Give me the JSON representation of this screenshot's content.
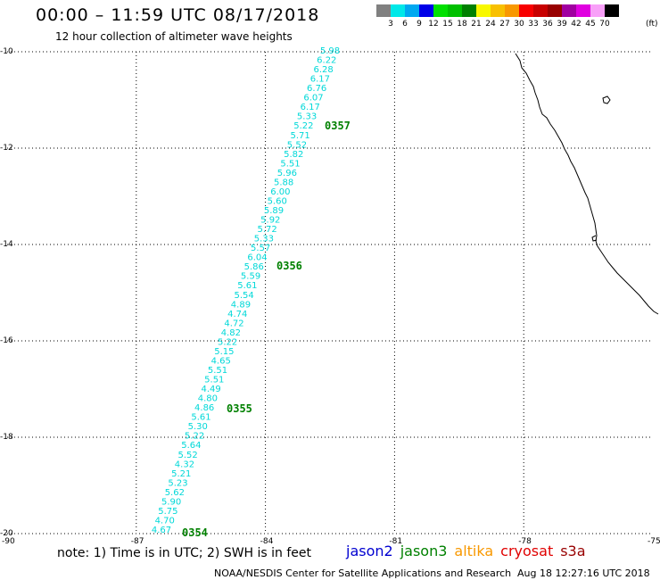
{
  "header": {
    "title": "00:00 – 11:59 UTC 08/17/2018",
    "subtitle": "12 hour collection of altimeter wave heights"
  },
  "legend": {
    "colors": [
      "#808080",
      "#00e8e8",
      "#00a8f0",
      "#0000e8",
      "#00e000",
      "#00c000",
      "#008000",
      "#f8f800",
      "#f8c000",
      "#f89800",
      "#f80000",
      "#c80000",
      "#980000",
      "#a000a0",
      "#e000e0",
      "#f8a0f8",
      "#000000"
    ],
    "labels": [
      "3",
      "6",
      "9",
      "12",
      "15",
      "18",
      "21",
      "24",
      "27",
      "30",
      "33",
      "36",
      "39",
      "42",
      "45",
      "70"
    ],
    "units": "(ft)"
  },
  "map": {
    "lon_range": [
      -90,
      -75
    ],
    "lat_range": [
      -20,
      -10
    ],
    "lat_labels": [
      "-10",
      "-12",
      "-14",
      "-16",
      "-18",
      "-20"
    ],
    "lon_labels": [
      "-87",
      "-84",
      "-81",
      "-78",
      "-75"
    ],
    "lon_left_label": "-90",
    "wave_color": "#00d8d8",
    "time_color": "#008000",
    "wave_heights": [
      "5.98",
      "6.22",
      "6.28",
      "6.17",
      "6.76",
      "6.07",
      "6.17",
      "5.33",
      "5.22",
      "5.71",
      "5.52",
      "5.82",
      "5.51",
      "5.96",
      "5.88",
      "6.00",
      "5.60",
      "5.89",
      "5.92",
      "5.72",
      "5.33",
      "5.57",
      "6.04",
      "5.86",
      "5.59",
      "5.61",
      "5.54",
      "4.89",
      "4.74",
      "4.72",
      "4.82",
      "5.22",
      "5.15",
      "4.65",
      "5.51",
      "5.51",
      "4.49",
      "4.80",
      "4.86",
      "5.61",
      "5.30",
      "5.22",
      "5.64",
      "5.52",
      "4.32",
      "5.21",
      "5.23",
      "5.62",
      "5.90",
      "5.75",
      "4.70",
      "4.67"
    ],
    "time_labels": [
      "0357",
      "0356",
      "0355",
      "0354"
    ]
  },
  "footer": {
    "note": "note: 1) Time is in UTC; 2) SWH is in feet",
    "satellites": [
      {
        "name": "jason2",
        "color": "#0000d0"
      },
      {
        "name": "jason3",
        "color": "#008000"
      },
      {
        "name": "altika",
        "color": "#f89800"
      },
      {
        "name": "cryosat",
        "color": "#e00000"
      },
      {
        "name": "s3a",
        "color": "#980000"
      }
    ],
    "credit": "NOAA/NESDIS Center for Satellite Applications and Research",
    "timestamp": "Aug 18 12:27:16 UTC 2018"
  }
}
